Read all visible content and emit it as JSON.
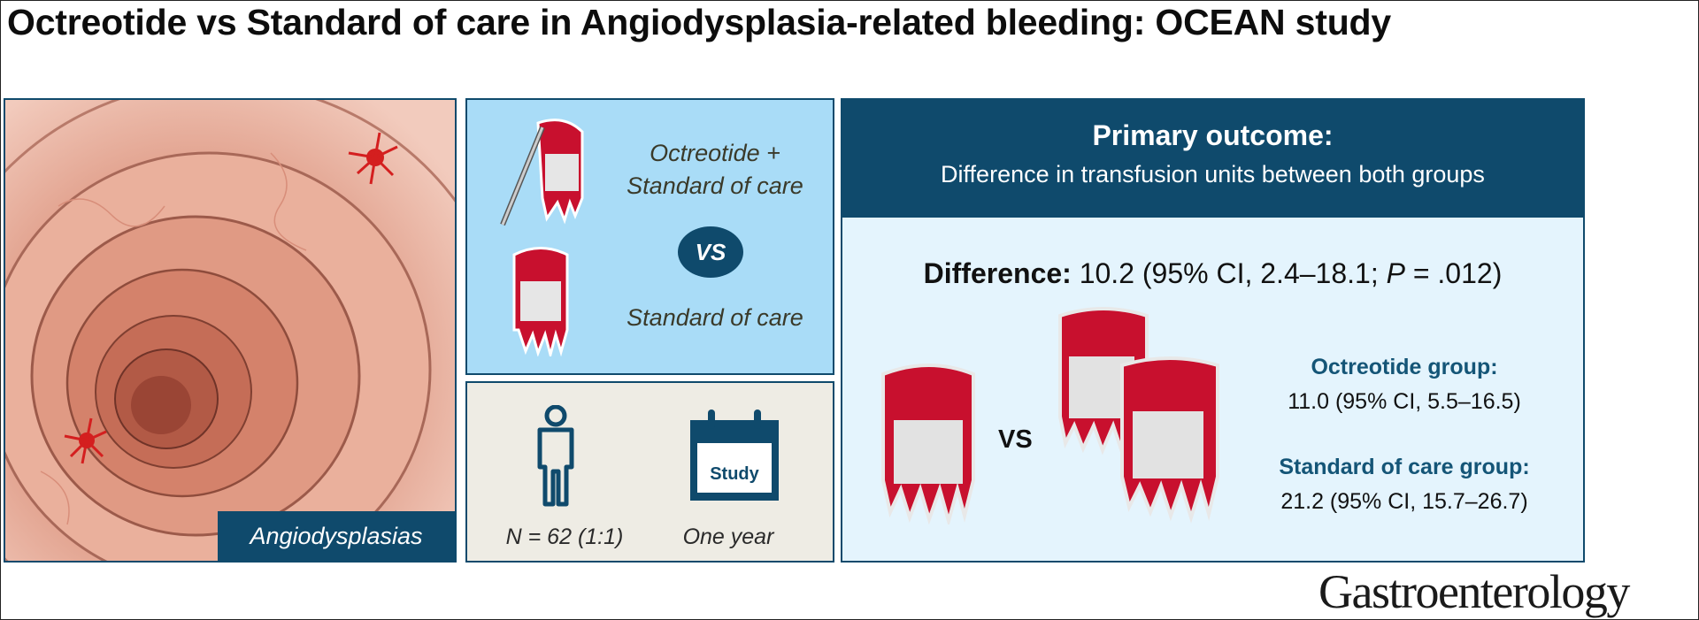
{
  "title": "Octreotide vs Standard of care in Angiodysplasia-related bleeding: OCEAN study",
  "colon_panel": {
    "label": "Angiodysplasias"
  },
  "arms_panel": {
    "intervention_line1": "Octreotide +",
    "intervention_line2": "Standard of care",
    "vs": "VS",
    "control": "Standard of care"
  },
  "population_panel": {
    "sample": "N = 62 (1:1)",
    "duration": "One year",
    "calendar_label": "Study"
  },
  "outcome_panel": {
    "heading": "Primary outcome:",
    "subheading": "Difference in transfusion units between both groups",
    "difference_label": "Difference:",
    "difference_value_a": "10.2 (95% CI, 2.4–18.1; ",
    "difference_p": "P",
    "difference_value_b": " = .012)",
    "vs": "VS",
    "groups": [
      {
        "name": "Octreotide group:",
        "value": "11.0 (95% CI, 5.5–16.5)"
      },
      {
        "name": "Standard of care group:",
        "value": "21.2 (95% CI, 15.7–26.7)"
      }
    ]
  },
  "journal": "Gastroenterology",
  "colors": {
    "navy": "#0f4a6c",
    "light_blue": "#a9dcf7",
    "pale_blue": "#e4f4fd",
    "beige": "#eeece4",
    "blood_red": "#c8102e"
  }
}
